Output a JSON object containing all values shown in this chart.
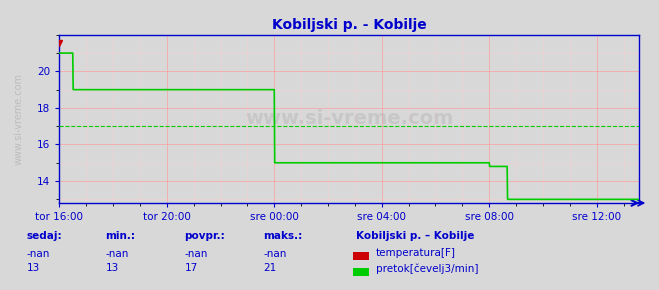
{
  "title": "Kobiljski p. - Kobilje",
  "title_color": "#0000cc",
  "bg_color": "#d8d8d8",
  "plot_bg_color": "#d8d8d8",
  "grid_color_major": "#ff9999",
  "grid_color_minor": "#ffcccc",
  "x_tick_labels": [
    "tor 16:00",
    "tor 20:00",
    "sre 00:00",
    "sre 04:00",
    "sre 08:00",
    "sre 12:00"
  ],
  "x_tick_positions": [
    0,
    240,
    480,
    720,
    960,
    1200
  ],
  "x_max": 1295,
  "ylim": [
    12.8,
    22.0
  ],
  "yticks": [
    14,
    16,
    18,
    20
  ],
  "flow_data_x": [
    0,
    30,
    31,
    100,
    101,
    480,
    481,
    700,
    701,
    960,
    961,
    1000,
    1001,
    1050,
    1295
  ],
  "flow_data_y": [
    21,
    21,
    19,
    19,
    19,
    19,
    15,
    15,
    15,
    15,
    14.8,
    14.8,
    13,
    13,
    13
  ],
  "avg_line_y": 17.0,
  "avg_line_color": "#00cc00",
  "flow_color": "#00cc00",
  "temp_color": "#cc0000",
  "axis_color": "#0000cc",
  "tick_color": "#0000cc",
  "watermark": "www.si-vreme.com",
  "watermark_color": "#aaaaaa",
  "ylabel_text": "www.si-vreme.com",
  "legend_title": "Kobiljski p. – Kobilje",
  "legend_title_color": "#0000cc",
  "legend_items": [
    {
      "label": "temperatura[F]",
      "color": "#cc0000"
    },
    {
      "label": "pretok[čevelj3/min]",
      "color": "#00cc00"
    }
  ],
  "table_headers": [
    "sedaj:",
    "min.:",
    "povpr.:",
    "maks.:"
  ],
  "table_row1": [
    "-nan",
    "-nan",
    "-nan",
    "-nan"
  ],
  "table_row2": [
    "13",
    "13",
    "17",
    "21"
  ],
  "table_color": "#0000cc",
  "figsize": [
    6.59,
    2.9
  ],
  "dpi": 100
}
